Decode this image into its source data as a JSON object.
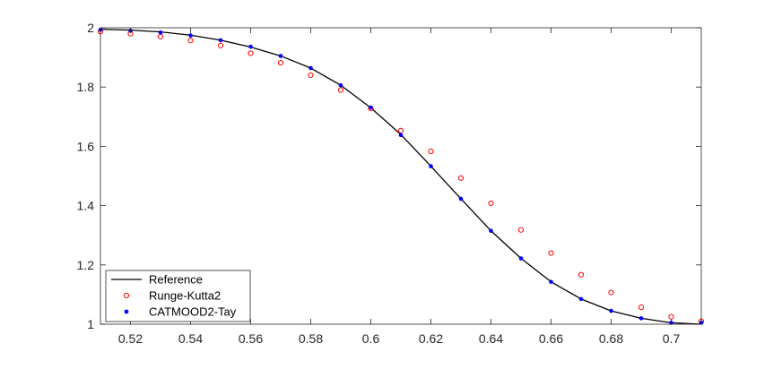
{
  "chart_data": {
    "type": "line",
    "title": "",
    "xlabel": "",
    "ylabel": "",
    "xlim": [
      0.51,
      0.71
    ],
    "ylim": [
      1,
      2
    ],
    "grid": false,
    "legend_position": "bottom-left",
    "x_ticks": [
      0.52,
      0.54,
      0.56,
      0.58,
      0.6,
      0.62,
      0.64,
      0.66,
      0.68,
      0.7
    ],
    "x_tick_labels": [
      "0.52",
      "0.54",
      "0.56",
      "0.58",
      "0.6",
      "0.62",
      "0.64",
      "0.66",
      "0.68",
      "0.7"
    ],
    "y_ticks": [
      1,
      1.2,
      1.4,
      1.6,
      1.8,
      2
    ],
    "y_tick_labels": [
      "1",
      "1.2",
      "1.4",
      "1.6",
      "1.8",
      "2"
    ],
    "series": [
      {
        "name": "Reference",
        "style": "line",
        "color": "#000000",
        "x": [
          0.51,
          0.52,
          0.53,
          0.54,
          0.55,
          0.56,
          0.57,
          0.58,
          0.59,
          0.6,
          0.61,
          0.62,
          0.63,
          0.64,
          0.65,
          0.66,
          0.67,
          0.68,
          0.69,
          0.7,
          0.71
        ],
        "values": [
          1.995,
          1.992,
          1.986,
          1.975,
          1.958,
          1.935,
          1.905,
          1.864,
          1.806,
          1.73,
          1.64,
          1.533,
          1.423,
          1.315,
          1.222,
          1.143,
          1.085,
          1.045,
          1.02,
          1.005,
          1.0
        ]
      },
      {
        "name": "Runge-Kutta2",
        "style": "open-circle",
        "color": "#ff0000",
        "x": [
          0.51,
          0.52,
          0.53,
          0.54,
          0.55,
          0.56,
          0.57,
          0.58,
          0.59,
          0.6,
          0.61,
          0.62,
          0.63,
          0.64,
          0.65,
          0.66,
          0.67,
          0.68,
          0.69,
          0.7,
          0.71
        ],
        "values": [
          1.987,
          1.98,
          1.97,
          1.957,
          1.94,
          1.914,
          1.882,
          1.84,
          1.79,
          1.728,
          1.653,
          1.583,
          1.493,
          1.408,
          1.318,
          1.24,
          1.167,
          1.107,
          1.057,
          1.025,
          1.01
        ]
      },
      {
        "name": "CATMOOD2-Tay",
        "style": "dot",
        "color": "#0000ff",
        "x": [
          0.51,
          0.52,
          0.53,
          0.54,
          0.55,
          0.56,
          0.57,
          0.58,
          0.59,
          0.6,
          0.61,
          0.62,
          0.63,
          0.64,
          0.65,
          0.66,
          0.67,
          0.68,
          0.69,
          0.7,
          0.71
        ],
        "values": [
          1.993,
          1.99,
          1.984,
          1.974,
          1.958,
          1.936,
          1.905,
          1.864,
          1.806,
          1.731,
          1.638,
          1.533,
          1.423,
          1.315,
          1.222,
          1.143,
          1.085,
          1.045,
          1.02,
          1.005,
          1.005
        ]
      }
    ]
  }
}
